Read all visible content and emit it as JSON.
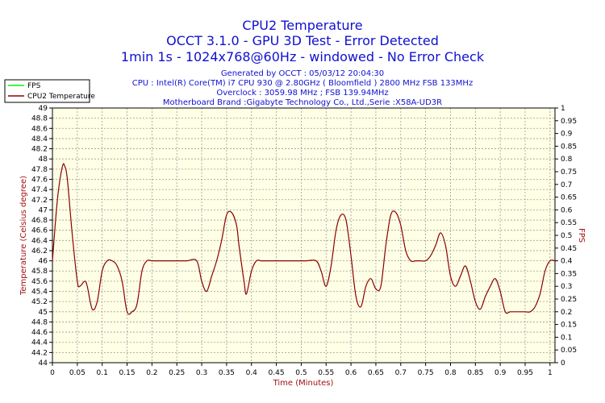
{
  "chart_data": {
    "type": "line",
    "title_lines": [
      "CPU2 Temperature",
      "OCCT 3.1.0 - GPU 3D Test - Error Detected",
      "1min 1s - 1024x768@60Hz - windowed - No Error Check"
    ],
    "info_lines": [
      "Generated by OCCT : 05/03/12 20:04:30",
      "CPU : Intel(R) Core(TM) i7 CPU 930 @ 2.80GHz ( Bloomfield ) 2800 MHz FSB 133MHz",
      "Overclock : 3059.98 MHz ; FSB 139.94MHz",
      "Motherboard Brand :Gigabyte Technology Co., Ltd.,Serie :X58A-UD3R"
    ],
    "xlabel": "Time (Minutes)",
    "ylabel": "Temperature (Celsius degree)",
    "y2label": "FPS",
    "xlim": [
      0,
      1.01
    ],
    "ylim": [
      44,
      49
    ],
    "y2lim": [
      0,
      1
    ],
    "xticks": [
      "0",
      "0.05",
      "0.1",
      "0.15",
      "0.2",
      "0.25",
      "0.3",
      "0.35",
      "0.4",
      "0.45",
      "0.5",
      "0.55",
      "0.6",
      "0.65",
      "0.7",
      "0.75",
      "0.8",
      "0.85",
      "0.9",
      "0.95",
      "1"
    ],
    "yticks": [
      "44",
      "44.2",
      "44.4",
      "44.6",
      "44.8",
      "45",
      "45.2",
      "45.4",
      "45.6",
      "45.8",
      "46",
      "46.2",
      "46.4",
      "46.6",
      "46.8",
      "47",
      "47.2",
      "47.4",
      "47.6",
      "47.8",
      "48",
      "48.2",
      "48.4",
      "48.6",
      "48.8",
      "49"
    ],
    "y2ticks": [
      "0",
      "0.05",
      "0.1",
      "0.15",
      "0.2",
      "0.25",
      "0.3",
      "0.35",
      "0.4",
      "0.45",
      "0.5",
      "0.55",
      "0.6",
      "0.65",
      "0.7",
      "0.75",
      "0.8",
      "0.85",
      "0.9",
      "0.95",
      "1"
    ],
    "grid": true,
    "legend_position": "top-left",
    "series": [
      {
        "name": "FPS",
        "color": "#00ff00",
        "axis": "right",
        "x": [],
        "y": []
      },
      {
        "name": "CPU2 Temperature",
        "color": "#8b0000",
        "axis": "left",
        "x": [
          0,
          0.01,
          0.02,
          0.025,
          0.03,
          0.04,
          0.05,
          0.055,
          0.065,
          0.07,
          0.08,
          0.09,
          0.1,
          0.11,
          0.12,
          0.13,
          0.14,
          0.15,
          0.16,
          0.17,
          0.18,
          0.19,
          0.2,
          0.21,
          0.22,
          0.23,
          0.25,
          0.27,
          0.29,
          0.3,
          0.31,
          0.32,
          0.33,
          0.34,
          0.35,
          0.36,
          0.37,
          0.375,
          0.385,
          0.39,
          0.4,
          0.41,
          0.42,
          0.43,
          0.44,
          0.45,
          0.47,
          0.49,
          0.51,
          0.53,
          0.54,
          0.55,
          0.56,
          0.57,
          0.58,
          0.59,
          0.6,
          0.61,
          0.62,
          0.63,
          0.64,
          0.65,
          0.66,
          0.67,
          0.68,
          0.69,
          0.7,
          0.71,
          0.72,
          0.73,
          0.74,
          0.75,
          0.76,
          0.77,
          0.78,
          0.79,
          0.8,
          0.81,
          0.82,
          0.83,
          0.84,
          0.85,
          0.86,
          0.87,
          0.88,
          0.89,
          0.9,
          0.91,
          0.92,
          0.93,
          0.94,
          0.95,
          0.96,
          0.97,
          0.98,
          0.99,
          1.0,
          1.01
        ],
        "y": [
          46.0,
          47.2,
          47.85,
          47.85,
          47.6,
          46.5,
          45.6,
          45.5,
          45.6,
          45.5,
          45.05,
          45.2,
          45.8,
          46.0,
          46.0,
          45.9,
          45.6,
          45.0,
          45.0,
          45.15,
          45.8,
          46.0,
          46.0,
          46.0,
          46.0,
          46.0,
          46.0,
          46.0,
          46.0,
          45.6,
          45.4,
          45.7,
          46.0,
          46.4,
          46.9,
          46.95,
          46.7,
          46.3,
          45.6,
          45.35,
          45.8,
          46.0,
          46.0,
          46.0,
          46.0,
          46.0,
          46.0,
          46.0,
          46.0,
          46.0,
          45.8,
          45.5,
          45.9,
          46.6,
          46.9,
          46.8,
          46.1,
          45.3,
          45.1,
          45.5,
          45.65,
          45.45,
          45.5,
          46.3,
          46.9,
          46.95,
          46.7,
          46.2,
          46.0,
          46.0,
          46.0,
          46.0,
          46.1,
          46.3,
          46.55,
          46.3,
          45.7,
          45.5,
          45.7,
          45.9,
          45.6,
          45.2,
          45.05,
          45.3,
          45.5,
          45.65,
          45.4,
          45.0,
          45.0,
          45.0,
          45.0,
          45.0,
          45.0,
          45.1,
          45.35,
          45.8,
          46.0,
          46.0
        ]
      }
    ]
  }
}
